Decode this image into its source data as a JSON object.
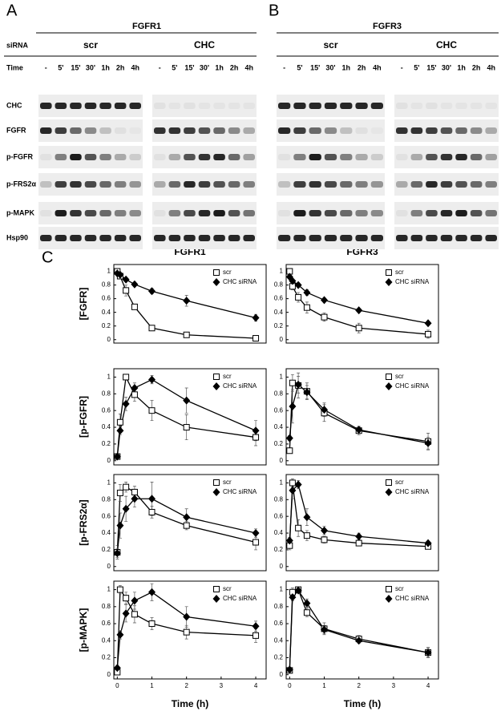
{
  "panel_a": {
    "letter": "A",
    "title": "FGFR1",
    "siRNA_label": "siRNA",
    "time_label": "Time",
    "groups": [
      "scr",
      "CHC"
    ],
    "times": [
      "-",
      "5'",
      "15'",
      "30'",
      "1h",
      "2h",
      "4h"
    ],
    "rows": [
      "CHC",
      "FGFR",
      "p-FGFR",
      "p-FRS2α",
      "p-MAPK",
      "Hsp90"
    ]
  },
  "panel_b": {
    "letter": "B",
    "title": "FGFR3",
    "groups": [
      "scr",
      "CHC"
    ],
    "times": [
      "-",
      "5'",
      "15'",
      "30'",
      "1h",
      "2h",
      "4h"
    ]
  },
  "panel_c": {
    "letter": "C",
    "columns": [
      "FGFR1",
      "FGFR3"
    ]
  },
  "chart_data": [
    {
      "type": "line",
      "ylabel": "[FGFR]",
      "x": [
        0,
        0.083,
        0.25,
        0.5,
        1,
        2,
        4
      ],
      "xlim": [
        -0.1,
        4.3
      ],
      "ylim": [
        -0.05,
        1.1
      ],
      "yticks": [
        0,
        0.2,
        0.4,
        0.6,
        0.8,
        1
      ],
      "legend": "upper right",
      "series": [
        {
          "name": "scr",
          "marker": "square-open",
          "color": "#000000",
          "values": [
            1.0,
            0.93,
            0.72,
            0.48,
            0.17,
            0.07,
            0.02
          ],
          "errors": [
            0.02,
            0.03,
            0.08,
            0.03,
            0.02,
            0.02,
            0.01
          ]
        },
        {
          "name": "CHC siRNA",
          "marker": "diamond-filled",
          "color": "#000000",
          "values": [
            0.97,
            0.95,
            0.88,
            0.81,
            0.71,
            0.57,
            0.32
          ],
          "errors": [
            0.02,
            0.02,
            0.03,
            0.03,
            0.04,
            0.08,
            0.05
          ]
        }
      ]
    },
    {
      "type": "line",
      "x": [
        0,
        0.083,
        0.25,
        0.5,
        1,
        2,
        4
      ],
      "xlim": [
        -0.1,
        4.3
      ],
      "ylim": [
        -0.05,
        1.1
      ],
      "yticks": [
        0,
        0.2,
        0.4,
        0.6,
        0.8,
        1
      ],
      "legend": "upper right",
      "series": [
        {
          "name": "scr",
          "marker": "square-open",
          "color": "#000000",
          "values": [
            1.0,
            0.78,
            0.62,
            0.47,
            0.33,
            0.17,
            0.08
          ],
          "errors": [
            0.02,
            0.05,
            0.07,
            0.08,
            0.06,
            0.07,
            0.06
          ]
        },
        {
          "name": "CHC siRNA",
          "marker": "diamond-filled",
          "color": "#000000",
          "values": [
            0.92,
            0.86,
            0.8,
            0.69,
            0.58,
            0.43,
            0.24
          ],
          "errors": [
            0.02,
            0.02,
            0.03,
            0.04,
            0.03,
            0.02,
            0.02
          ]
        }
      ]
    },
    {
      "type": "line",
      "ylabel": "[p-FGFR]",
      "x": [
        0,
        0.083,
        0.25,
        0.5,
        1,
        2,
        4
      ],
      "xlim": [
        -0.1,
        4.3
      ],
      "ylim": [
        -0.05,
        1.1
      ],
      "yticks": [
        0,
        0.2,
        0.4,
        0.6,
        0.8,
        1
      ],
      "legend": "upper right",
      "series": [
        {
          "name": "scr",
          "marker": "square-open",
          "color": "#000000",
          "values": [
            0.05,
            0.46,
            1.0,
            0.79,
            0.6,
            0.4,
            0.28
          ],
          "errors": [
            0.02,
            0.1,
            0.03,
            0.08,
            0.12,
            0.15,
            0.1
          ]
        },
        {
          "name": "CHC siRNA",
          "marker": "diamond-filled",
          "color": "#000000",
          "values": [
            0.05,
            0.36,
            0.68,
            0.87,
            0.97,
            0.72,
            0.36
          ],
          "errors": [
            0.02,
            0.05,
            0.08,
            0.06,
            0.05,
            0.15,
            0.12
          ]
        }
      ]
    },
    {
      "type": "line",
      "x": [
        0,
        0.083,
        0.25,
        0.5,
        1,
        2,
        4
      ],
      "xlim": [
        -0.1,
        4.3
      ],
      "ylim": [
        -0.05,
        1.1
      ],
      "yticks": [
        0,
        0.2,
        0.4,
        0.6,
        0.8,
        1
      ],
      "legend": "upper right",
      "series": [
        {
          "name": "scr",
          "marker": "square-open",
          "color": "#000000",
          "values": [
            0.12,
            0.93,
            0.9,
            0.83,
            0.57,
            0.36,
            0.23
          ],
          "errors": [
            0.03,
            0.1,
            0.15,
            0.1,
            0.1,
            0.05,
            0.1
          ]
        },
        {
          "name": "CHC siRNA",
          "marker": "diamond-filled",
          "color": "#000000",
          "values": [
            0.27,
            0.65,
            0.91,
            0.82,
            0.61,
            0.37,
            0.21
          ],
          "errors": [
            0.03,
            0.2,
            0.1,
            0.08,
            0.08,
            0.04,
            0.07
          ]
        }
      ]
    },
    {
      "type": "line",
      "ylabel": "[p-FRS2α]",
      "x": [
        0,
        0.083,
        0.25,
        0.5,
        1,
        2,
        4
      ],
      "xlim": [
        -0.1,
        4.3
      ],
      "ylim": [
        -0.05,
        1.1
      ],
      "yticks": [
        0,
        0.2,
        0.4,
        0.6,
        0.8,
        1
      ],
      "legend": "upper right",
      "series": [
        {
          "name": "scr",
          "marker": "square-open",
          "color": "#000000",
          "values": [
            0.17,
            0.88,
            0.95,
            0.89,
            0.65,
            0.49,
            0.29
          ],
          "errors": [
            0.08,
            0.1,
            0.06,
            0.07,
            0.07,
            0.05,
            0.09
          ]
        },
        {
          "name": "CHC siRNA",
          "marker": "diamond-filled",
          "color": "#000000",
          "values": [
            0.16,
            0.49,
            0.69,
            0.81,
            0.81,
            0.59,
            0.4
          ],
          "errors": [
            0.05,
            0.15,
            0.15,
            0.1,
            0.2,
            0.1,
            0.05
          ]
        }
      ]
    },
    {
      "type": "line",
      "x": [
        0,
        0.083,
        0.25,
        0.5,
        1,
        2,
        4
      ],
      "xlim": [
        -0.1,
        4.3
      ],
      "ylim": [
        -0.05,
        1.1
      ],
      "yticks": [
        0,
        0.2,
        0.4,
        0.6,
        0.8,
        1
      ],
      "legend": "upper right",
      "series": [
        {
          "name": "scr",
          "marker": "square-open",
          "color": "#000000",
          "values": [
            0.25,
            1.0,
            0.46,
            0.37,
            0.32,
            0.28,
            0.24
          ],
          "errors": [
            0.05,
            0.05,
            0.1,
            0.06,
            0.04,
            0.03,
            0.02
          ]
        },
        {
          "name": "CHC siRNA",
          "marker": "diamond-filled",
          "color": "#000000",
          "values": [
            0.31,
            0.91,
            0.98,
            0.59,
            0.43,
            0.36,
            0.28
          ],
          "errors": [
            0.04,
            0.1,
            0.05,
            0.1,
            0.05,
            0.04,
            0.02
          ]
        }
      ]
    },
    {
      "type": "line",
      "ylabel": "[p-MAPK]",
      "xlabel": "Time (h)",
      "x": [
        0,
        0.083,
        0.25,
        0.5,
        1,
        2,
        4
      ],
      "xlim": [
        -0.1,
        4.3
      ],
      "xticks": [
        0,
        1,
        2,
        3,
        4
      ],
      "ylim": [
        -0.05,
        1.1
      ],
      "yticks": [
        0,
        0.2,
        0.4,
        0.6,
        0.8,
        1
      ],
      "legend": "upper right",
      "series": [
        {
          "name": "scr",
          "marker": "square-open",
          "color": "#000000",
          "values": [
            0.03,
            1.0,
            0.9,
            0.71,
            0.6,
            0.5,
            0.46
          ],
          "errors": [
            0.01,
            0.05,
            0.07,
            0.1,
            0.07,
            0.08,
            0.08
          ]
        },
        {
          "name": "CHC siRNA",
          "marker": "diamond-filled",
          "color": "#000000",
          "values": [
            0.08,
            0.47,
            0.72,
            0.87,
            0.97,
            0.68,
            0.57
          ],
          "errors": [
            0.02,
            0.05,
            0.1,
            0.1,
            0.1,
            0.12,
            0.06
          ]
        }
      ]
    },
    {
      "type": "line",
      "xlabel": "Time (h)",
      "x": [
        0,
        0.083,
        0.25,
        0.5,
        1,
        2,
        4
      ],
      "xlim": [
        -0.1,
        4.3
      ],
      "xticks": [
        0,
        1,
        2,
        3,
        4
      ],
      "ylim": [
        -0.05,
        1.1
      ],
      "yticks": [
        0,
        0.2,
        0.4,
        0.6,
        0.8,
        1
      ],
      "legend": "upper right",
      "series": [
        {
          "name": "scr",
          "marker": "square-open",
          "color": "#000000",
          "values": [
            0.05,
            0.97,
            1.0,
            0.73,
            0.54,
            0.42,
            0.26
          ],
          "errors": [
            0.02,
            0.05,
            0.03,
            0.05,
            0.07,
            0.04,
            0.06
          ]
        },
        {
          "name": "CHC siRNA",
          "marker": "diamond-filled",
          "color": "#000000",
          "values": [
            0.06,
            0.91,
            0.99,
            0.84,
            0.53,
            0.4,
            0.26
          ],
          "errors": [
            0.02,
            0.04,
            0.03,
            0.05,
            0.05,
            0.03,
            0.05
          ]
        }
      ]
    }
  ]
}
